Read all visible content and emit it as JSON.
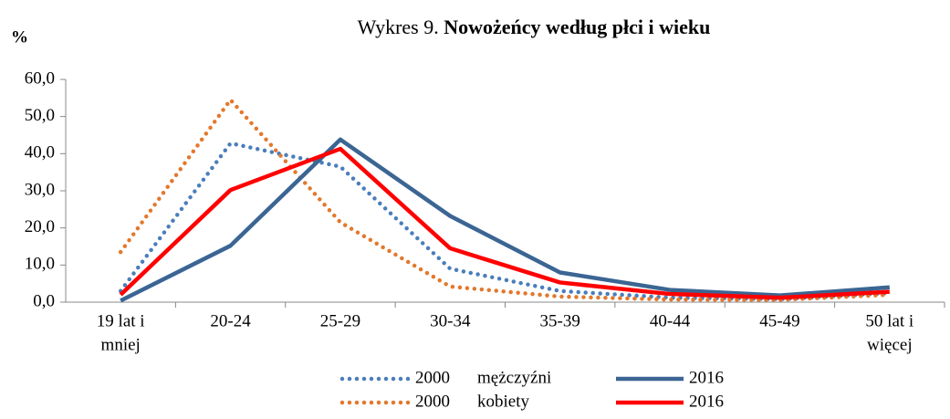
{
  "chart_data": {
    "type": "line",
    "title_prefix": "Wykres 9.",
    "title": "Nowożeńcy według  płci i wieku",
    "y_label": "%",
    "categories": [
      [
        "19 lat i",
        "mniej"
      ],
      [
        "20-24"
      ],
      [
        "25-29"
      ],
      [
        "30-34"
      ],
      [
        "35-39"
      ],
      [
        "40-44"
      ],
      [
        "45-49"
      ],
      [
        "50 lat i",
        "więcej"
      ]
    ],
    "series": [
      {
        "name": "2000",
        "group": "mężczyźni",
        "color": "#4a7ebb",
        "style": "dotted",
        "values": [
          3.0,
          42.8,
          36.5,
          9.0,
          3.0,
          1.2,
          0.8,
          2.5
        ]
      },
      {
        "name": "2000",
        "group": "kobiety",
        "color": "#e3782c",
        "style": "dotted",
        "values": [
          13.5,
          54.5,
          21.5,
          4.2,
          1.5,
          0.7,
          0.6,
          2.0
        ]
      },
      {
        "name": "2016",
        "color": "#3b6593",
        "style": "solid",
        "values": [
          0.4,
          15.2,
          43.8,
          23.2,
          8.0,
          3.3,
          1.8,
          4.0
        ]
      },
      {
        "name": "2016",
        "color": "#ff0000",
        "style": "solid",
        "values": [
          2.0,
          30.2,
          41.3,
          14.5,
          5.3,
          2.2,
          1.2,
          2.8
        ]
      }
    ],
    "ylim": [
      0,
      60
    ],
    "yticks": [
      {
        "value": 0,
        "label": "0,0"
      },
      {
        "value": 10,
        "label": "10,0"
      },
      {
        "value": 20,
        "label": "20,0"
      },
      {
        "value": 30,
        "label": "30,0"
      },
      {
        "value": 40,
        "label": "40,0"
      },
      {
        "value": 50,
        "label": "50,0"
      },
      {
        "value": 60,
        "label": "60,0"
      }
    ]
  }
}
